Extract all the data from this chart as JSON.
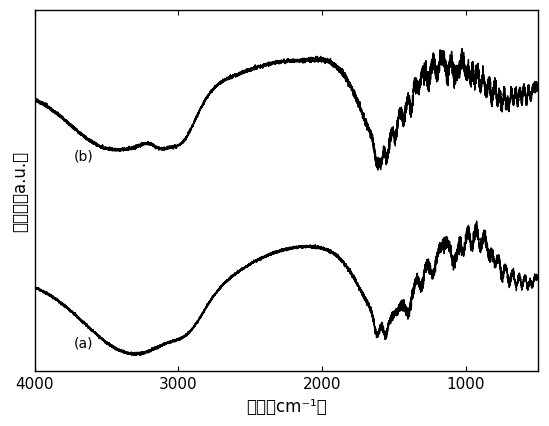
{
  "title": "",
  "xlabel": "波数（cm⁻¹）",
  "ylabel": "透过率（a.u.）",
  "x_min": 500,
  "x_max": 4000,
  "background_color": "#ffffff",
  "label_a": "(a)",
  "label_b": "(b)",
  "xticks": [
    4000,
    3000,
    2000,
    1000
  ],
  "xticklabels": [
    "4000",
    "3000",
    "2000",
    "1000"
  ]
}
